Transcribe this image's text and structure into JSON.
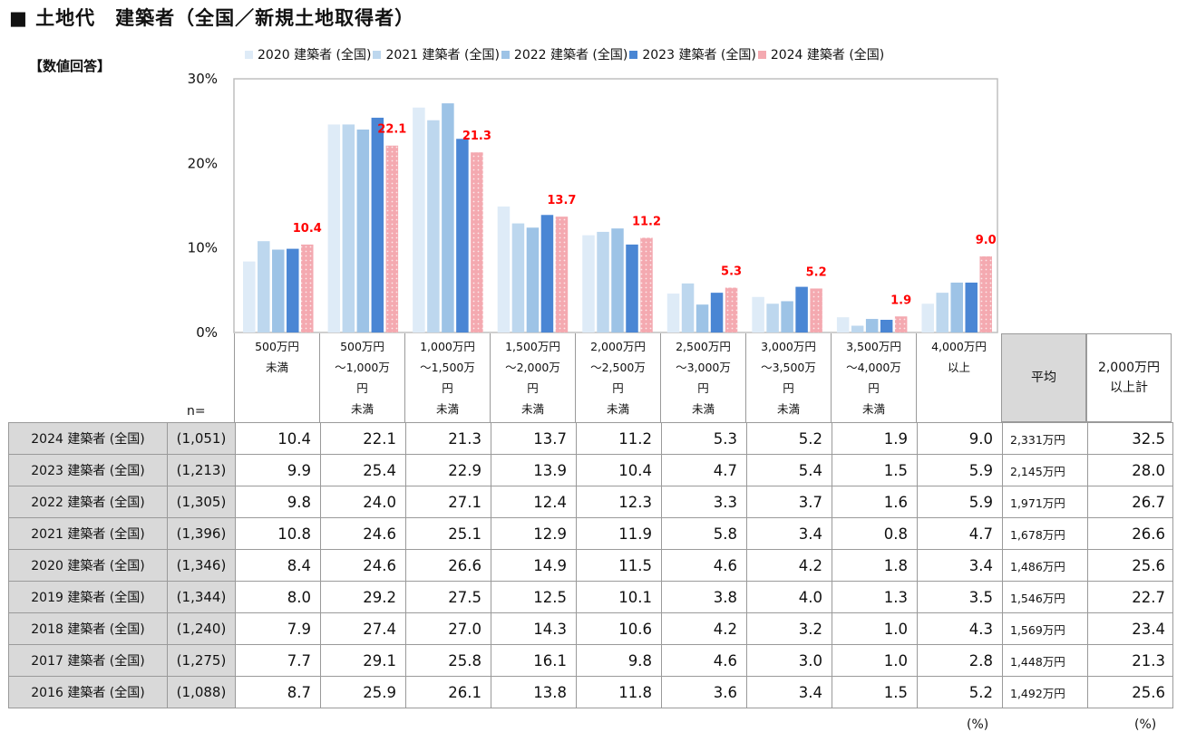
{
  "title": "■ 土地代　建築者（全国／新規土地取得者）",
  "subtitle": "【数値回答】",
  "n_label": "n=",
  "unit_left": "(%)",
  "unit_right": "(%)",
  "summary_headers": [
    "平均",
    "2,000万円\n以上計"
  ],
  "colors": {
    "2020": "#deebf7",
    "2021": "#bdd7ee",
    "2022": "#9dc3e6",
    "2023": "#4a86d4",
    "2024": "#f4a9b0",
    "label_red": "#ff0000",
    "grid": "#bfbfbf",
    "table_header_bg": "#d9d9d9"
  },
  "chart_data": {
    "type": "bar",
    "categories": [
      "500万円\n未満",
      "500万円\n～1,000万\n円\n未満",
      "1,000万円\n～1,500万\n円\n未満",
      "1,500万円\n～2,000万\n円\n未満",
      "2,000万円\n～2,500万\n円\n未満",
      "2,500万円\n～3,000万\n円\n未満",
      "3,000万円\n～3,500万\n円\n未満",
      "3,500万円\n～4,000万\n円\n未満",
      "4,000万円\n以上"
    ],
    "series": [
      {
        "name": "2020 建築者 (全国)",
        "values": [
          8.4,
          24.6,
          26.6,
          14.9,
          11.5,
          4.6,
          4.2,
          1.8,
          3.4
        ]
      },
      {
        "name": "2021 建築者 (全国)",
        "values": [
          10.8,
          24.6,
          25.1,
          12.9,
          11.9,
          5.8,
          3.4,
          0.8,
          4.7
        ]
      },
      {
        "name": "2022 建築者 (全国)",
        "values": [
          9.8,
          24.0,
          27.1,
          12.4,
          12.3,
          3.3,
          3.7,
          1.6,
          5.9
        ]
      },
      {
        "name": "2023 建築者 (全国)",
        "values": [
          9.9,
          25.4,
          22.9,
          13.9,
          10.4,
          4.7,
          5.4,
          1.5,
          5.9
        ]
      },
      {
        "name": "2024 建築者 (全国)",
        "values": [
          10.4,
          22.1,
          21.3,
          13.7,
          11.2,
          5.3,
          5.2,
          1.9,
          9.0
        ]
      }
    ],
    "data_labels": [
      "10.4",
      "22.1",
      "21.3",
      "13.7",
      "11.2",
      "5.3",
      "5.2",
      "1.9",
      "9.0"
    ],
    "y_ticks": [
      "0%",
      "10%",
      "20%",
      "30%"
    ],
    "ylim": [
      0,
      30
    ],
    "grid": false,
    "legend_position": "top"
  },
  "table": [
    {
      "label": "2024 建築者 (全国)",
      "n": "(1,051)",
      "values": [
        "10.4",
        "22.1",
        "21.3",
        "13.7",
        "11.2",
        "5.3",
        "5.2",
        "1.9",
        "9.0"
      ],
      "avg": "2,331万円",
      "total": "32.5"
    },
    {
      "label": "2023 建築者 (全国)",
      "n": "(1,213)",
      "values": [
        "9.9",
        "25.4",
        "22.9",
        "13.9",
        "10.4",
        "4.7",
        "5.4",
        "1.5",
        "5.9"
      ],
      "avg": "2,145万円",
      "total": "28.0"
    },
    {
      "label": "2022 建築者 (全国)",
      "n": "(1,305)",
      "values": [
        "9.8",
        "24.0",
        "27.1",
        "12.4",
        "12.3",
        "3.3",
        "3.7",
        "1.6",
        "5.9"
      ],
      "avg": "1,971万円",
      "total": "26.7"
    },
    {
      "label": "2021 建築者 (全国)",
      "n": "(1,396)",
      "values": [
        "10.8",
        "24.6",
        "25.1",
        "12.9",
        "11.9",
        "5.8",
        "3.4",
        "0.8",
        "4.7"
      ],
      "avg": "1,678万円",
      "total": "26.6"
    },
    {
      "label": "2020 建築者 (全国)",
      "n": "(1,346)",
      "values": [
        "8.4",
        "24.6",
        "26.6",
        "14.9",
        "11.5",
        "4.6",
        "4.2",
        "1.8",
        "3.4"
      ],
      "avg": "1,486万円",
      "total": "25.6"
    },
    {
      "label": "2019 建築者 (全国)",
      "n": "(1,344)",
      "values": [
        "8.0",
        "29.2",
        "27.5",
        "12.5",
        "10.1",
        "3.8",
        "4.0",
        "1.3",
        "3.5"
      ],
      "avg": "1,546万円",
      "total": "22.7"
    },
    {
      "label": "2018 建築者 (全国)",
      "n": "(1,240)",
      "values": [
        "7.9",
        "27.4",
        "27.0",
        "14.3",
        "10.6",
        "4.2",
        "3.2",
        "1.0",
        "4.3"
      ],
      "avg": "1,569万円",
      "total": "23.4"
    },
    {
      "label": "2017 建築者 (全国)",
      "n": "(1,275)",
      "values": [
        "7.7",
        "29.1",
        "25.8",
        "16.1",
        "9.8",
        "4.6",
        "3.0",
        "1.0",
        "2.8"
      ],
      "avg": "1,448万円",
      "total": "21.3"
    },
    {
      "label": "2016 建築者 (全国)",
      "n": "(1,088)",
      "values": [
        "8.7",
        "25.9",
        "26.1",
        "13.8",
        "11.8",
        "3.6",
        "3.4",
        "1.5",
        "5.2"
      ],
      "avg": "1,492万円",
      "total": "25.6"
    }
  ]
}
